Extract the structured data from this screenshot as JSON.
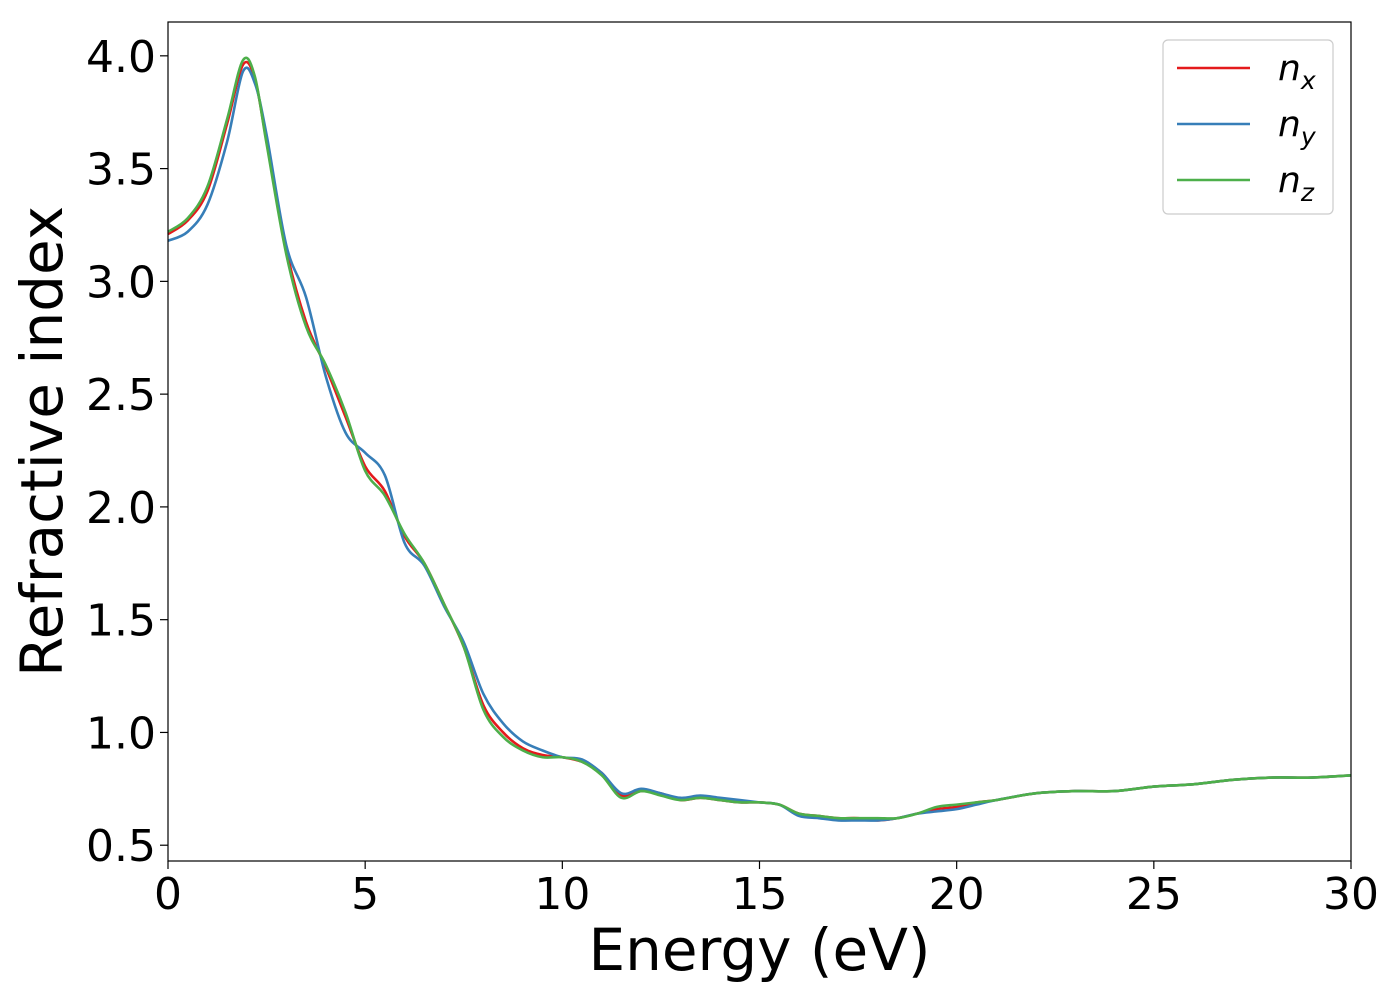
{
  "chart_data": {
    "type": "line",
    "xlabel": "Energy (eV)",
    "ylabel": "Refractive index",
    "xlim": [
      0,
      30
    ],
    "ylim": [
      0.43,
      4.15
    ],
    "xticks": [
      0,
      5,
      10,
      15,
      20,
      25,
      30
    ],
    "xtick_labels": [
      "0",
      "5",
      "10",
      "15",
      "20",
      "25",
      "30"
    ],
    "yticks": [
      0.5,
      1.0,
      1.5,
      2.0,
      2.5,
      3.0,
      3.5,
      4.0
    ],
    "ytick_labels": [
      "0.5",
      "1.0",
      "1.5",
      "2.0",
      "2.5",
      "3.0",
      "3.5",
      "4.0"
    ],
    "grid": false,
    "legend_position": "top-right",
    "series": [
      {
        "name": "n_x",
        "base": "n",
        "sub": "x",
        "color": "#e41a1c",
        "x": [
          0,
          0.5,
          1.0,
          1.5,
          1.9,
          2.2,
          2.5,
          3.0,
          3.5,
          4.0,
          4.5,
          5.0,
          5.5,
          6.0,
          6.5,
          7.0,
          7.5,
          8.0,
          8.5,
          9.0,
          9.5,
          10.0,
          10.5,
          11.0,
          11.5,
          12.0,
          12.5,
          13.0,
          13.5,
          14.0,
          14.5,
          15.0,
          15.5,
          16.0,
          16.5,
          17.0,
          17.5,
          18.0,
          18.5,
          19.0,
          19.5,
          20.0,
          20.5,
          21.0,
          22.0,
          23.0,
          24.0,
          25.0,
          26.0,
          27.0,
          28.0,
          29.0,
          30.0
        ],
        "y": [
          3.21,
          3.27,
          3.4,
          3.7,
          3.96,
          3.9,
          3.62,
          3.14,
          2.82,
          2.62,
          2.4,
          2.18,
          2.07,
          1.87,
          1.75,
          1.57,
          1.38,
          1.12,
          1.0,
          0.93,
          0.9,
          0.89,
          0.87,
          0.82,
          0.72,
          0.74,
          0.73,
          0.7,
          0.71,
          0.7,
          0.69,
          0.69,
          0.68,
          0.64,
          0.63,
          0.62,
          0.62,
          0.61,
          0.62,
          0.64,
          0.66,
          0.67,
          0.69,
          0.7,
          0.73,
          0.74,
          0.74,
          0.76,
          0.77,
          0.79,
          0.8,
          0.8,
          0.81
        ]
      },
      {
        "name": "n_y",
        "base": "n",
        "sub": "y",
        "color": "#377eb8",
        "x": [
          0,
          0.5,
          1.0,
          1.5,
          1.9,
          2.2,
          2.5,
          3.0,
          3.5,
          4.0,
          4.5,
          5.0,
          5.5,
          6.0,
          6.5,
          7.0,
          7.5,
          8.0,
          8.5,
          9.0,
          9.5,
          10.0,
          10.5,
          11.0,
          11.5,
          12.0,
          12.5,
          13.0,
          13.5,
          14.0,
          14.5,
          15.0,
          15.5,
          16.0,
          16.5,
          17.0,
          17.5,
          18.0,
          18.5,
          19.0,
          19.5,
          20.0,
          20.5,
          21.0,
          22.0,
          23.0,
          24.0,
          25.0,
          26.0,
          27.0,
          28.0,
          29.0,
          30.0
        ],
        "y": [
          3.18,
          3.22,
          3.34,
          3.62,
          3.93,
          3.88,
          3.65,
          3.16,
          2.93,
          2.58,
          2.33,
          2.24,
          2.14,
          1.84,
          1.74,
          1.56,
          1.4,
          1.17,
          1.04,
          0.96,
          0.92,
          0.89,
          0.88,
          0.82,
          0.73,
          0.75,
          0.73,
          0.71,
          0.72,
          0.71,
          0.7,
          0.69,
          0.68,
          0.63,
          0.62,
          0.61,
          0.61,
          0.61,
          0.62,
          0.64,
          0.65,
          0.66,
          0.68,
          0.7,
          0.73,
          0.74,
          0.74,
          0.76,
          0.77,
          0.79,
          0.8,
          0.8,
          0.81
        ]
      },
      {
        "name": "n_z",
        "base": "n",
        "sub": "z",
        "color": "#4daf4a",
        "x": [
          0,
          0.5,
          1.0,
          1.5,
          1.9,
          2.2,
          2.5,
          3.0,
          3.5,
          4.0,
          4.5,
          5.0,
          5.5,
          6.0,
          6.5,
          7.0,
          7.5,
          8.0,
          8.5,
          9.0,
          9.5,
          10.0,
          10.5,
          11.0,
          11.5,
          12.0,
          12.5,
          13.0,
          13.5,
          14.0,
          14.5,
          15.0,
          15.5,
          16.0,
          16.5,
          17.0,
          17.5,
          18.0,
          18.5,
          19.0,
          19.5,
          20.0,
          20.5,
          21.0,
          22.0,
          23.0,
          24.0,
          25.0,
          26.0,
          27.0,
          28.0,
          29.0,
          30.0
        ],
        "y": [
          3.22,
          3.28,
          3.42,
          3.72,
          3.98,
          3.91,
          3.61,
          3.12,
          2.8,
          2.63,
          2.42,
          2.16,
          2.05,
          1.88,
          1.75,
          1.57,
          1.38,
          1.1,
          0.98,
          0.92,
          0.89,
          0.89,
          0.87,
          0.81,
          0.71,
          0.74,
          0.72,
          0.7,
          0.71,
          0.7,
          0.69,
          0.69,
          0.68,
          0.64,
          0.63,
          0.62,
          0.62,
          0.62,
          0.62,
          0.64,
          0.67,
          0.68,
          0.69,
          0.7,
          0.73,
          0.74,
          0.74,
          0.76,
          0.77,
          0.79,
          0.8,
          0.8,
          0.81
        ]
      }
    ]
  }
}
